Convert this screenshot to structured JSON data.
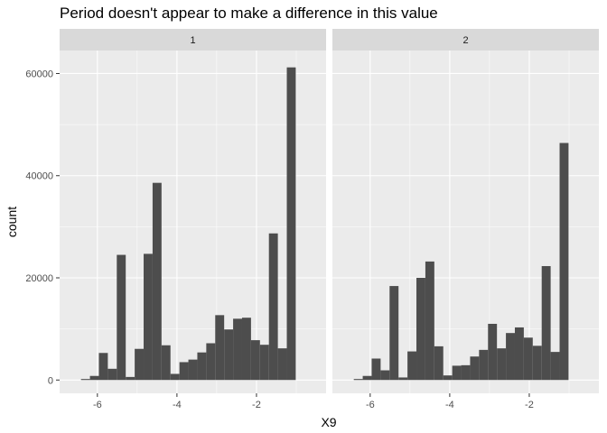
{
  "chart_data": {
    "type": "bar",
    "title": "Period doesn't appear to make a difference in this value",
    "xlabel": "X9",
    "ylabel": "count",
    "x_ticks": [
      -6,
      -4,
      -2
    ],
    "y_ticks": [
      0,
      20000,
      40000,
      60000
    ],
    "y_tick_labels": [
      "0",
      "20000",
      "40000",
      "60000"
    ],
    "xlim": [
      -6.95,
      -0.25
    ],
    "ylim": [
      -2600,
      64500
    ],
    "bin_width": 0.225,
    "bin_centers": [
      -6.3,
      -6.075,
      -5.85,
      -5.625,
      -5.4,
      -5.175,
      -4.95,
      -4.725,
      -4.5,
      -4.275,
      -4.05,
      -3.825,
      -3.6,
      -3.375,
      -3.15,
      -2.925,
      -2.7,
      -2.475,
      -2.25,
      -2.025,
      -1.8,
      -1.575,
      -1.35,
      -1.125,
      -0.9,
      -0.675,
      -0.45
    ],
    "panels": [
      {
        "name": "1",
        "values": [
          200,
          800,
          5300,
          2200,
          24500,
          600,
          6100,
          24700,
          38600,
          6800,
          1200,
          3500,
          4000,
          5400,
          7200,
          12700,
          9900,
          12000,
          12200,
          7800,
          6900,
          28700,
          6200,
          61200,
          0,
          0,
          0
        ]
      },
      {
        "name": "2",
        "values": [
          200,
          800,
          4200,
          1900,
          18400,
          500,
          5600,
          20000,
          23200,
          6600,
          900,
          2800,
          2900,
          4600,
          5900,
          11000,
          6200,
          9200,
          10300,
          8300,
          6700,
          22300,
          5500,
          46400,
          0,
          0,
          0
        ]
      }
    ]
  }
}
